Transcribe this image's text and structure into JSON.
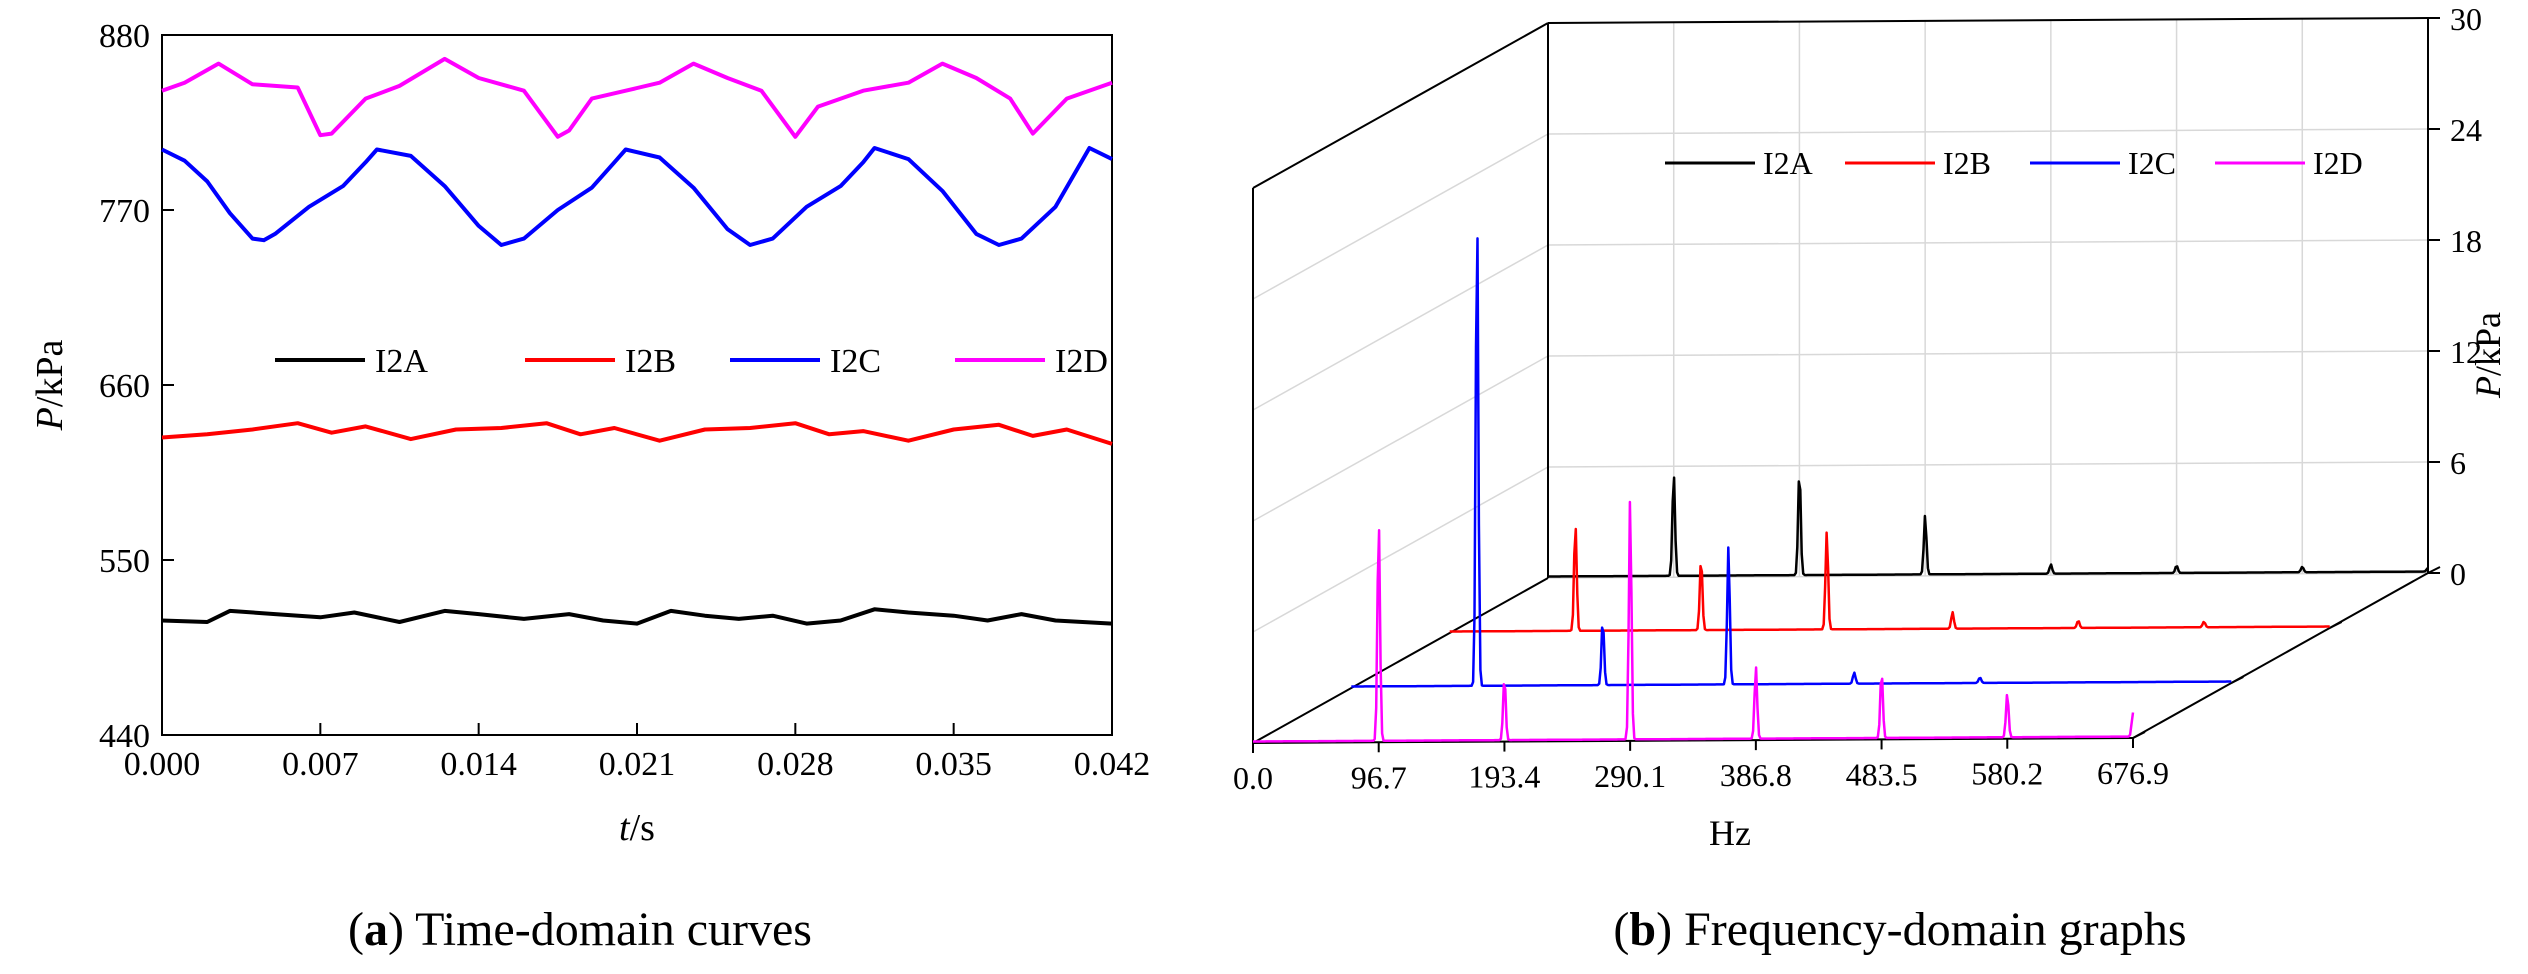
{
  "chart_data": [
    {
      "type": "line",
      "caption": {
        "letter": "a",
        "text": "Time-domain curves"
      },
      "xlabel_italic": "t",
      "xlabel_unit": "/s",
      "ylabel_italic": "P",
      "ylabel_unit": "/kPa",
      "xlim": [
        0,
        0.042
      ],
      "ylim": [
        440,
        880
      ],
      "xticks": [
        "0.000",
        "0.007",
        "0.014",
        "0.021",
        "0.028",
        "0.035",
        "0.042"
      ],
      "yticks": [
        "440",
        "550",
        "660",
        "770",
        "880"
      ],
      "legend_position": "center",
      "grid": false,
      "series": [
        {
          "name": "I2A",
          "color": "#000000",
          "x": [
            0,
            0.002,
            0.003,
            0.005,
            0.007,
            0.0085,
            0.0105,
            0.0125,
            0.014,
            0.016,
            0.018,
            0.0195,
            0.021,
            0.0225,
            0.024,
            0.0255,
            0.027,
            0.0285,
            0.03,
            0.0315,
            0.033,
            0.035,
            0.0365,
            0.038,
            0.0395,
            0.042
          ],
          "values": [
            512,
            511,
            518,
            516,
            514,
            517,
            511,
            518,
            516,
            513,
            516,
            512,
            510,
            518,
            515,
            513,
            515,
            510,
            512,
            519,
            517,
            515,
            512,
            516,
            512,
            510
          ]
        },
        {
          "name": "I2B",
          "color": "#ff0000",
          "x": [
            0,
            0.002,
            0.004,
            0.006,
            0.0075,
            0.009,
            0.011,
            0.013,
            0.015,
            0.017,
            0.0185,
            0.02,
            0.022,
            0.024,
            0.026,
            0.028,
            0.0295,
            0.031,
            0.033,
            0.035,
            0.037,
            0.0385,
            0.04,
            0.042
          ],
          "values": [
            627,
            629,
            632,
            636,
            630,
            634,
            626,
            632,
            633,
            636,
            629,
            633,
            625,
            632,
            633,
            636,
            629,
            631,
            625,
            632,
            635,
            628,
            632,
            623
          ]
        },
        {
          "name": "I2C",
          "color": "#0000ff",
          "x": [
            0,
            0.001,
            0.002,
            0.003,
            0.004,
            0.0045,
            0.005,
            0.0065,
            0.008,
            0.009,
            0.0095,
            0.011,
            0.0125,
            0.014,
            0.015,
            0.016,
            0.0175,
            0.019,
            0.02,
            0.0205,
            0.022,
            0.0235,
            0.025,
            0.026,
            0.027,
            0.0285,
            0.03,
            0.031,
            0.0315,
            0.033,
            0.0345,
            0.036,
            0.037,
            0.038,
            0.0395,
            0.041,
            0.042
          ],
          "values": [
            808,
            801,
            788,
            768,
            752,
            751,
            755,
            772,
            785,
            800,
            808,
            804,
            785,
            760,
            748,
            752,
            770,
            784,
            800,
            808,
            803,
            784,
            758,
            748,
            752,
            772,
            785,
            800,
            809,
            802,
            782,
            755,
            748,
            752,
            772,
            809,
            802
          ]
        },
        {
          "name": "I2D",
          "color": "#ff00ff",
          "x": [
            0,
            0.001,
            0.0025,
            0.004,
            0.006,
            0.007,
            0.0075,
            0.009,
            0.0105,
            0.0125,
            0.014,
            0.016,
            0.0175,
            0.018,
            0.019,
            0.0205,
            0.022,
            0.0235,
            0.025,
            0.0265,
            0.028,
            0.029,
            0.031,
            0.033,
            0.0345,
            0.036,
            0.0375,
            0.0385,
            0.04,
            0.042
          ],
          "values": [
            845,
            850,
            862,
            849,
            847,
            817,
            818,
            840,
            848,
            865,
            853,
            845,
            816,
            820,
            840,
            845,
            850,
            862,
            853,
            845,
            816,
            835,
            845,
            850,
            862,
            853,
            840,
            818,
            840,
            850
          ]
        }
      ]
    },
    {
      "type": "line",
      "subtype": "3d-waterfall",
      "caption": {
        "letter": "b",
        "text": "Frequency-domain graphs"
      },
      "xlabel": "Hz",
      "ylabel_italic": "P",
      "ylabel_unit": "/kPa",
      "xlim": [
        0,
        676.9
      ],
      "zlim": [
        0,
        30
      ],
      "xticks": [
        "0.0",
        "96.7",
        "193.4",
        "290.1",
        "386.8",
        "483.5",
        "580.2",
        "676.9"
      ],
      "zticks": [
        "0",
        "6",
        "12",
        "18",
        "24",
        "30"
      ],
      "legend_position": "top-right",
      "grid": true,
      "series": [
        {
          "name": "I2A",
          "color": "#000000",
          "x": [
            96.7,
            193.4,
            290.1,
            386.8,
            483.5,
            580.2,
            676.9
          ],
          "values": [
            5.6,
            5.7,
            3.2,
            0.5,
            0.4,
            0.3,
            0.2
          ]
        },
        {
          "name": "I2B",
          "color": "#ff0000",
          "x": [
            96.7,
            193.4,
            290.1,
            386.8,
            483.5,
            580.2
          ],
          "values": [
            5.8,
            3.9,
            5.3,
            0.9,
            0.4,
            0.3
          ]
        },
        {
          "name": "I2C",
          "color": "#0000ff",
          "x": [
            96.7,
            193.4,
            290.1,
            386.8,
            483.5
          ],
          "values": [
            25.5,
            3.5,
            7.5,
            0.6,
            0.3
          ]
        },
        {
          "name": "I2D",
          "color": "#ff00ff",
          "x": [
            96.7,
            193.4,
            290.1,
            386.8,
            483.5,
            580.2,
            676.9
          ],
          "values": [
            12.0,
            3.4,
            13.0,
            3.9,
            3.6,
            2.4,
            1.3
          ]
        }
      ]
    }
  ]
}
